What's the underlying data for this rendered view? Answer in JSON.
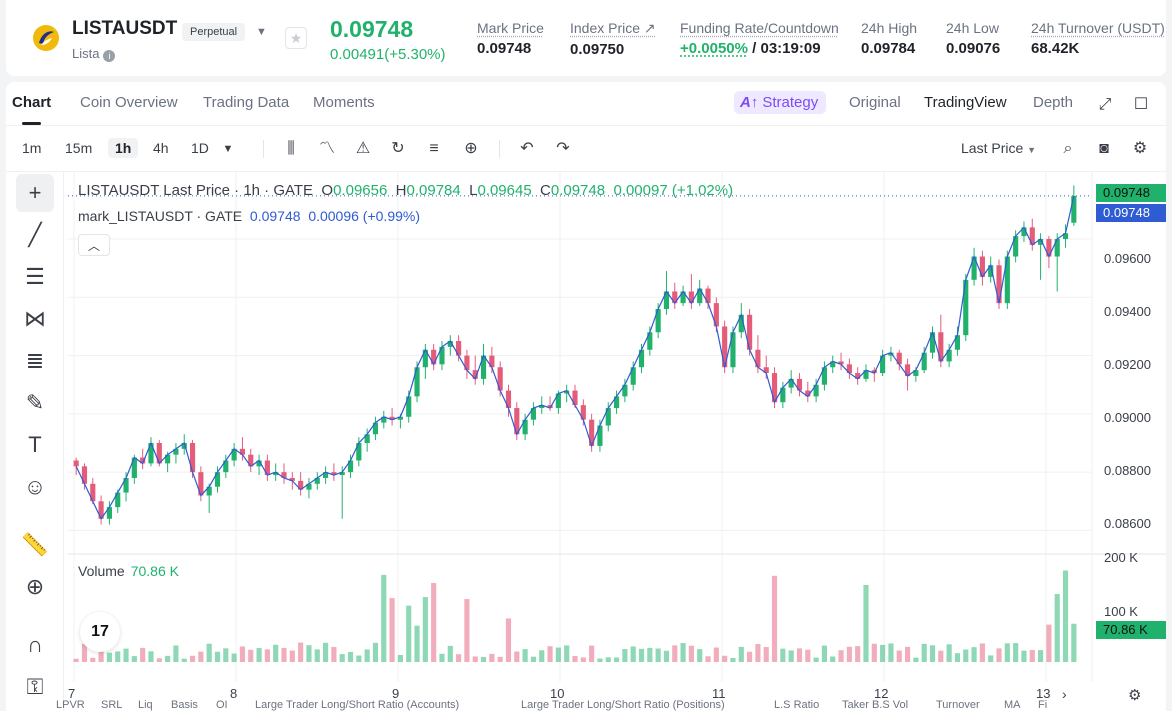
{
  "header": {
    "symbol": "LISTAUSDT",
    "badge": "Perpetual",
    "subtitle": "Lista",
    "last_price": "0.09748",
    "change": "0.00491(+5.30%)",
    "stats": [
      {
        "label": "Mark Price",
        "value": "0.09748"
      },
      {
        "label": "Index Price ↗",
        "value": "0.09750"
      },
      {
        "label": "Funding Rate/Countdown",
        "value_green": "+0.0050%",
        "value": " / 03:19:09"
      },
      {
        "label": "24h High",
        "value": "0.09784"
      },
      {
        "label": "24h Low",
        "value": "0.09076"
      },
      {
        "label": "24h Turnover (USDT)",
        "value": "68.42K"
      }
    ]
  },
  "tabs": [
    "Chart",
    "Coin Overview",
    "Trading Data",
    "Moments"
  ],
  "views": {
    "strategy": "Strategy",
    "original": "Original",
    "tradingview": "TradingView",
    "depth": "Depth"
  },
  "intervals": [
    "1m",
    "15m",
    "1h",
    "4h",
    "1D"
  ],
  "toolbar": {
    "price_type": "Last Price"
  },
  "legend": {
    "title": "LISTAUSDT Last Price · 1h · GATE",
    "o": "0.09656",
    "h": "0.09784",
    "l": "0.09645",
    "c": "0.09748",
    "change": "0.00097 (+1.02%)",
    "mark_name": "mark_LISTAUSDT · GATE",
    "mark_value": "0.09748",
    "mark_change": "0.00096 (+0.99%)"
  },
  "volume": {
    "label": "Volume",
    "value": "70.86 K"
  },
  "price_axis": {
    "ticks": [
      "0.09600",
      "0.09400",
      "0.09200",
      "0.09000",
      "0.08800",
      "0.08600"
    ],
    "last_price_tag": "0.09748",
    "mark_price_tag": "0.09748"
  },
  "volume_axis": {
    "ticks": [
      "200 K",
      "100 K"
    ],
    "tag": "70.86 K"
  },
  "x_axis": [
    "7",
    "8",
    "9",
    "10",
    "11",
    "12",
    "13"
  ],
  "bottom_nav": [
    "LPVR",
    "SRL",
    "Liq",
    "Basis",
    "OI",
    "Large Trader Long/Short Ratio (Accounts)",
    "Large Trader Long/Short Ratio (Positions)",
    "L.S Ratio",
    "Taker B.S Vol",
    "Turnover",
    "MA",
    "Fi"
  ],
  "colors": {
    "up": "#20b26c",
    "down": "#e55c7a",
    "mark_line": "#2f5bd3",
    "last_tag": "#20b26c",
    "mark_tag": "#2f5bd3"
  },
  "chart_data": {
    "type": "candlestick",
    "interval": "1h",
    "y_range": [
      0.0855,
      0.0983
    ],
    "candles": [
      [
        0.0884,
        0.0885,
        0.0879,
        0.0882
      ],
      [
        0.0882,
        0.0883,
        0.0874,
        0.0876
      ],
      [
        0.0876,
        0.0878,
        0.0869,
        0.087
      ],
      [
        0.087,
        0.0872,
        0.0862,
        0.0864
      ],
      [
        0.0864,
        0.087,
        0.0862,
        0.0868
      ],
      [
        0.0868,
        0.0874,
        0.0866,
        0.0873
      ],
      [
        0.0873,
        0.088,
        0.087,
        0.0878
      ],
      [
        0.0878,
        0.0886,
        0.0876,
        0.0885
      ],
      [
        0.0885,
        0.0888,
        0.0881,
        0.0883
      ],
      [
        0.0883,
        0.0892,
        0.0882,
        0.089
      ],
      [
        0.089,
        0.0891,
        0.0882,
        0.0883
      ],
      [
        0.0883,
        0.0887,
        0.088,
        0.0886
      ],
      [
        0.0886,
        0.089,
        0.0883,
        0.0888
      ],
      [
        0.0888,
        0.0893,
        0.0886,
        0.089
      ],
      [
        0.089,
        0.0891,
        0.0878,
        0.088
      ],
      [
        0.088,
        0.0882,
        0.087,
        0.0872
      ],
      [
        0.0872,
        0.0876,
        0.0866,
        0.0875
      ],
      [
        0.0875,
        0.0882,
        0.0873,
        0.088
      ],
      [
        0.088,
        0.0886,
        0.0878,
        0.0884
      ],
      [
        0.0884,
        0.089,
        0.0882,
        0.0888
      ],
      [
        0.0888,
        0.0892,
        0.0884,
        0.0886
      ],
      [
        0.0886,
        0.0888,
        0.088,
        0.0882
      ],
      [
        0.0882,
        0.0886,
        0.0879,
        0.0884
      ],
      [
        0.0884,
        0.0886,
        0.0877,
        0.0879
      ],
      [
        0.0879,
        0.0883,
        0.0877,
        0.088
      ],
      [
        0.088,
        0.0883,
        0.0876,
        0.0878
      ],
      [
        0.0878,
        0.088,
        0.0874,
        0.0877
      ],
      [
        0.0877,
        0.088,
        0.0872,
        0.0874
      ],
      [
        0.0874,
        0.0878,
        0.0871,
        0.0876
      ],
      [
        0.0876,
        0.088,
        0.0874,
        0.0878
      ],
      [
        0.0878,
        0.0882,
        0.0876,
        0.088
      ],
      [
        0.088,
        0.0883,
        0.0877,
        0.0879
      ],
      [
        0.0879,
        0.0882,
        0.0864,
        0.088
      ],
      [
        0.088,
        0.0886,
        0.0878,
        0.0884
      ],
      [
        0.0884,
        0.0892,
        0.0882,
        0.089
      ],
      [
        0.089,
        0.0895,
        0.0887,
        0.0893
      ],
      [
        0.0893,
        0.0899,
        0.0891,
        0.0897
      ],
      [
        0.0897,
        0.0901,
        0.0895,
        0.0899
      ],
      [
        0.0899,
        0.0902,
        0.0896,
        0.0898
      ],
      [
        0.0898,
        0.09,
        0.0895,
        0.0899
      ],
      [
        0.0899,
        0.0908,
        0.0897,
        0.0906
      ],
      [
        0.0906,
        0.0918,
        0.0904,
        0.0916
      ],
      [
        0.0916,
        0.0924,
        0.0912,
        0.0922
      ],
      [
        0.0922,
        0.0924,
        0.0915,
        0.0917
      ],
      [
        0.0917,
        0.0925,
        0.0915,
        0.0923
      ],
      [
        0.0923,
        0.0927,
        0.092,
        0.0925
      ],
      [
        0.0925,
        0.0927,
        0.0918,
        0.092
      ],
      [
        0.092,
        0.0922,
        0.0912,
        0.0915
      ],
      [
        0.0915,
        0.092,
        0.091,
        0.0912
      ],
      [
        0.0912,
        0.0924,
        0.091,
        0.092
      ],
      [
        0.092,
        0.0923,
        0.0914,
        0.0916
      ],
      [
        0.0916,
        0.0918,
        0.0906,
        0.0908
      ],
      [
        0.0908,
        0.091,
        0.0899,
        0.0902
      ],
      [
        0.0902,
        0.0904,
        0.0891,
        0.0893
      ],
      [
        0.0893,
        0.09,
        0.0891,
        0.0898
      ],
      [
        0.0898,
        0.0904,
        0.0896,
        0.0902
      ],
      [
        0.0902,
        0.0906,
        0.09,
        0.0903
      ],
      [
        0.0903,
        0.0906,
        0.0901,
        0.0902
      ],
      [
        0.0902,
        0.0908,
        0.09,
        0.0907
      ],
      [
        0.0907,
        0.091,
        0.0904,
        0.0908
      ],
      [
        0.0908,
        0.091,
        0.0902,
        0.0903
      ],
      [
        0.0903,
        0.0905,
        0.0896,
        0.0898
      ],
      [
        0.0898,
        0.09,
        0.0887,
        0.0889
      ],
      [
        0.0889,
        0.0898,
        0.0887,
        0.0896
      ],
      [
        0.0896,
        0.0904,
        0.0894,
        0.0902
      ],
      [
        0.0902,
        0.0908,
        0.09,
        0.0906
      ],
      [
        0.0906,
        0.0912,
        0.0904,
        0.091
      ],
      [
        0.091,
        0.0918,
        0.0908,
        0.0916
      ],
      [
        0.0916,
        0.0924,
        0.0914,
        0.0922
      ],
      [
        0.0922,
        0.093,
        0.092,
        0.0928
      ],
      [
        0.0928,
        0.0938,
        0.0926,
        0.0936
      ],
      [
        0.0936,
        0.0949,
        0.0934,
        0.0942
      ],
      [
        0.0942,
        0.0945,
        0.0936,
        0.0938
      ],
      [
        0.0938,
        0.0944,
        0.0937,
        0.0942
      ],
      [
        0.0942,
        0.0948,
        0.0936,
        0.0938
      ],
      [
        0.0938,
        0.0946,
        0.0937,
        0.0943
      ],
      [
        0.0943,
        0.0944,
        0.0936,
        0.0938
      ],
      [
        0.0938,
        0.094,
        0.0928,
        0.093
      ],
      [
        0.093,
        0.0932,
        0.0914,
        0.0916
      ],
      [
        0.0916,
        0.093,
        0.0914,
        0.0928
      ],
      [
        0.0928,
        0.0938,
        0.0926,
        0.0934
      ],
      [
        0.0934,
        0.0936,
        0.092,
        0.0922
      ],
      [
        0.0922,
        0.0927,
        0.0914,
        0.0916
      ],
      [
        0.0916,
        0.092,
        0.0912,
        0.0914
      ],
      [
        0.0914,
        0.0916,
        0.0902,
        0.0904
      ],
      [
        0.0904,
        0.0911,
        0.0902,
        0.0909
      ],
      [
        0.0909,
        0.0915,
        0.0907,
        0.0912
      ],
      [
        0.0912,
        0.0914,
        0.0906,
        0.0908
      ],
      [
        0.0908,
        0.0911,
        0.0904,
        0.0906
      ],
      [
        0.0906,
        0.0912,
        0.0904,
        0.091
      ],
      [
        0.091,
        0.0918,
        0.0908,
        0.0916
      ],
      [
        0.0916,
        0.092,
        0.0914,
        0.0918
      ],
      [
        0.0918,
        0.0921,
        0.0915,
        0.0917
      ],
      [
        0.0917,
        0.0919,
        0.0912,
        0.0914
      ],
      [
        0.0914,
        0.0916,
        0.091,
        0.0912
      ],
      [
        0.0912,
        0.0917,
        0.0911,
        0.0915
      ],
      [
        0.0915,
        0.0916,
        0.0911,
        0.0914
      ],
      [
        0.0914,
        0.0922,
        0.0913,
        0.092
      ],
      [
        0.092,
        0.0923,
        0.0918,
        0.0921
      ],
      [
        0.0921,
        0.0922,
        0.0915,
        0.0917
      ],
      [
        0.0917,
        0.0919,
        0.0908,
        0.0913
      ],
      [
        0.0913,
        0.0916,
        0.0911,
        0.0915
      ],
      [
        0.0915,
        0.0923,
        0.0914,
        0.0921
      ],
      [
        0.0921,
        0.093,
        0.0919,
        0.0928
      ],
      [
        0.0928,
        0.0934,
        0.0916,
        0.0918
      ],
      [
        0.0918,
        0.0924,
        0.0916,
        0.0922
      ],
      [
        0.0922,
        0.093,
        0.092,
        0.0927
      ],
      [
        0.0927,
        0.0948,
        0.0925,
        0.0946
      ],
      [
        0.0946,
        0.0957,
        0.0944,
        0.0954
      ],
      [
        0.0954,
        0.0956,
        0.0944,
        0.0947
      ],
      [
        0.0947,
        0.0954,
        0.0945,
        0.0951
      ],
      [
        0.0951,
        0.0953,
        0.0936,
        0.0938
      ],
      [
        0.0938,
        0.0956,
        0.0936,
        0.0954
      ],
      [
        0.0954,
        0.0963,
        0.0952,
        0.0961
      ],
      [
        0.0961,
        0.0966,
        0.0959,
        0.0964
      ],
      [
        0.0964,
        0.0967,
        0.0956,
        0.0958
      ],
      [
        0.0958,
        0.0962,
        0.0946,
        0.096
      ],
      [
        0.096,
        0.0961,
        0.095,
        0.0954
      ],
      [
        0.0954,
        0.0962,
        0.0942,
        0.096
      ],
      [
        0.096,
        0.0965,
        0.0957,
        0.0962
      ],
      [
        0.09656,
        0.09784,
        0.09645,
        0.09748
      ]
    ],
    "volume_max": 200000
  }
}
